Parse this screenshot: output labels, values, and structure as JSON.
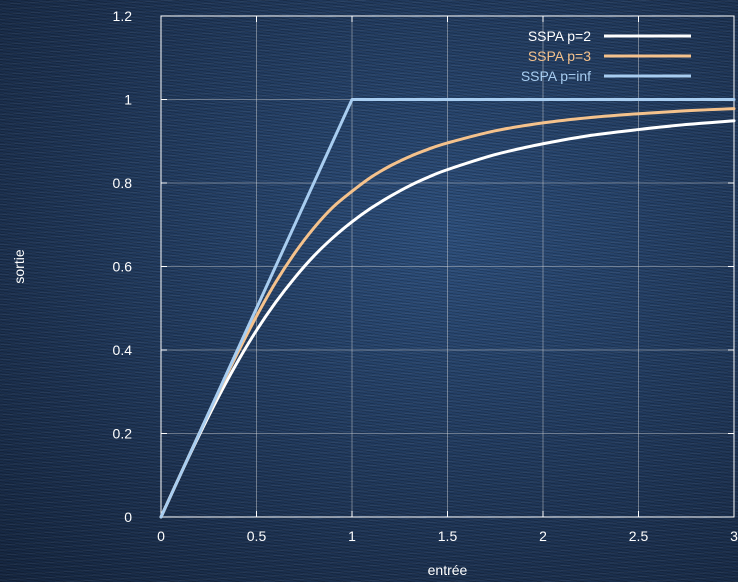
{
  "chart_data": {
    "type": "line",
    "title": "",
    "xlabel": "entrée",
    "ylabel": "sortie",
    "xlim": [
      0,
      3
    ],
    "ylim": [
      0,
      1.2
    ],
    "xticks": [
      0,
      0.5,
      1,
      1.5,
      2,
      2.5,
      3
    ],
    "yticks": [
      0,
      0.2,
      0.4,
      0.6,
      0.8,
      1,
      1.2
    ],
    "xtick_labels": [
      "0",
      "0.5",
      "1",
      "1.5",
      "2",
      "2.5",
      "3"
    ],
    "ytick_labels": [
      "0",
      "0.2",
      "0.4",
      "0.6",
      "0.8",
      "1",
      "1.2"
    ],
    "grid": true,
    "legend_position": "top-right",
    "x": [
      0,
      0.1,
      0.2,
      0.3,
      0.4,
      0.5,
      0.6,
      0.7,
      0.8,
      0.9,
      1.0,
      1.1,
      1.2,
      1.3,
      1.4,
      1.5,
      1.75,
      2.0,
      2.25,
      2.5,
      2.75,
      3.0
    ],
    "series": [
      {
        "name": "SSPA p=2",
        "color": "#ffffff",
        "values": [
          0,
          0.1,
          0.196,
          0.287,
          0.371,
          0.447,
          0.514,
          0.573,
          0.625,
          0.669,
          0.707,
          0.74,
          0.768,
          0.793,
          0.814,
          0.832,
          0.868,
          0.894,
          0.914,
          0.928,
          0.94,
          0.949
        ]
      },
      {
        "name": "SSPA p=3",
        "color": "#f5c28c",
        "values": [
          0,
          0.1,
          0.2,
          0.298,
          0.392,
          0.481,
          0.562,
          0.632,
          0.692,
          0.742,
          0.78,
          0.814,
          0.841,
          0.863,
          0.881,
          0.896,
          0.925,
          0.944,
          0.957,
          0.966,
          0.973,
          0.978
        ]
      },
      {
        "name": "SSPA p=inf",
        "color": "#a8cdf0",
        "values": [
          0,
          0.1,
          0.2,
          0.3,
          0.4,
          0.5,
          0.6,
          0.7,
          0.8,
          0.9,
          1.0,
          1.0,
          1.0,
          1.0,
          1.0,
          1.0,
          1.0,
          1.0,
          1.0,
          1.0,
          1.0,
          1.0
        ]
      }
    ]
  }
}
